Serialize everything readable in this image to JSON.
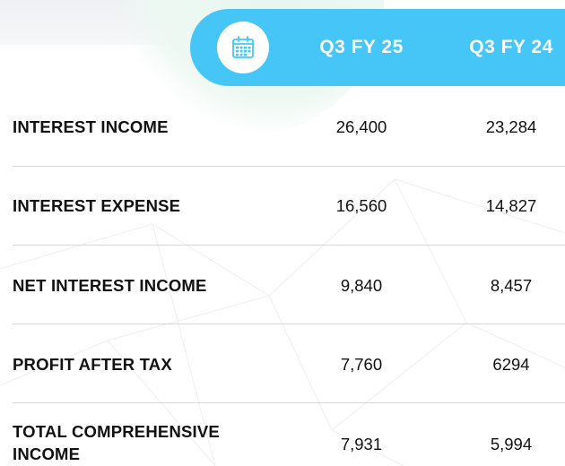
{
  "header": {
    "icon": "calendar-icon",
    "columns": [
      "Q3 FY 25",
      "Q3 FY 24"
    ],
    "accent_color": "#45c6f7"
  },
  "rows": [
    {
      "label": "INTEREST INCOME",
      "q3fy25": "26,400",
      "q3fy24": "23,284"
    },
    {
      "label": "INTEREST EXPENSE",
      "q3fy25": "16,560",
      "q3fy24": "14,827"
    },
    {
      "label": "NET INTEREST INCOME",
      "q3fy25": "9,840",
      "q3fy24": "8,457"
    },
    {
      "label": "PROFIT AFTER TAX",
      "q3fy25": "7,760",
      "q3fy24": "6294"
    },
    {
      "label_line1": "TOTAL COMPREHENSIVE",
      "label_line2": "INCOME",
      "q3fy25": "7,931",
      "q3fy24": "5,994"
    }
  ]
}
